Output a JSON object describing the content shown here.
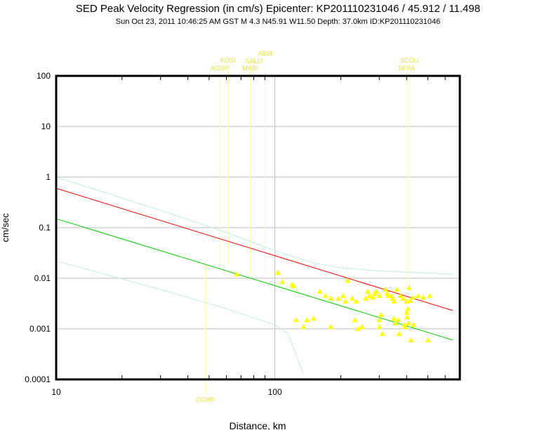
{
  "header": {
    "title": "SED Peak Velocity Regression (in cm/s) Epicenter: KP201110231046 / 45.912 / 11.498",
    "subtitle": "Sun Oct 23, 2011 10:46:25 AM GST   M 4.3   N45.91 W11.50   Depth: 37.0km   ID:KP201110231046"
  },
  "chart_data": {
    "type": "scatter",
    "title": "SED Peak Velocity Regression (in cm/s) Epicenter: KP201110231046 / 45.912 / 11.498",
    "subtitle": "Sun Oct 23, 2011 10:46:25 AM GST   M 4.3   N45.91 W11.50   Depth: 37.0km   ID:KP201110231046",
    "xlabel": "Distance, km",
    "ylabel": "cm/sec",
    "x_scale": "log",
    "y_scale": "log",
    "xlim": [
      10,
      700
    ],
    "ylim": [
      0.0001,
      100
    ],
    "x_ticks": [
      {
        "value": 10,
        "label": "10"
      },
      {
        "value": 100,
        "label": "100"
      }
    ],
    "y_ticks": [
      {
        "value": 100,
        "label": "100"
      },
      {
        "value": 10,
        "label": "10"
      },
      {
        "value": 1,
        "label": "1"
      },
      {
        "value": 0.1,
        "label": "0.1"
      },
      {
        "value": 0.01,
        "label": "0.01"
      },
      {
        "value": 0.001,
        "label": "0.001"
      },
      {
        "value": 0.0001,
        "label": "0.0001"
      }
    ],
    "grid": true,
    "colors": {
      "points": "#ffff00",
      "median_regression": "#ff0000",
      "lower_regression": "#00cc00",
      "bounds": "#bfeedd",
      "station_lines": "#ffff99",
      "station_labels": "#e6e63a",
      "grid": "#bbbbbb"
    },
    "regression_lines": [
      {
        "id": "median",
        "color": "#ff0000",
        "x": [
          10,
          650
        ],
        "y": [
          0.6,
          0.0023
        ]
      },
      {
        "id": "lower",
        "color": "#00cc00",
        "x": [
          10,
          650
        ],
        "y": [
          0.15,
          0.0006
        ]
      },
      {
        "id": "upper-bound",
        "color": "#bfeedd",
        "x": [
          10,
          30,
          60,
          100,
          150,
          200,
          300,
          650
        ],
        "y": [
          1.0,
          0.22,
          0.08,
          0.035,
          0.02,
          0.016,
          0.014,
          0.012
        ]
      },
      {
        "id": "lower-bound",
        "color": "#bfeedd",
        "x": [
          10,
          30,
          60,
          100,
          115,
          125,
          135
        ],
        "y": [
          0.022,
          0.006,
          0.0025,
          0.0012,
          0.0008,
          0.0003,
          0.00013
        ]
      }
    ],
    "station_markers": [
      {
        "name": "AGOR",
        "x": 56,
        "y": 0.018
      },
      {
        "name": "KOSI",
        "x": 61,
        "y": 0.018
      },
      {
        "name": "MABI",
        "x": 77,
        "y": 0.012
      },
      {
        "name": "SALO",
        "x": 80,
        "y": 0.012
      },
      {
        "name": "ABSI",
        "x": 90,
        "y": 0.012
      },
      {
        "name": "OGRP",
        "x": 48,
        "y": 0.018
      },
      {
        "name": "SFRA",
        "x": 400,
        "y": 0.007
      },
      {
        "name": "SCOU",
        "x": 412,
        "y": 0.007
      }
    ],
    "points": [
      {
        "x": 67,
        "y": 0.012
      },
      {
        "x": 103,
        "y": 0.013
      },
      {
        "x": 108,
        "y": 0.0085
      },
      {
        "x": 120,
        "y": 0.0075
      },
      {
        "x": 122,
        "y": 0.007
      },
      {
        "x": 125,
        "y": 0.0015
      },
      {
        "x": 135,
        "y": 0.0011
      },
      {
        "x": 140,
        "y": 0.0015
      },
      {
        "x": 150,
        "y": 0.0016
      },
      {
        "x": 160,
        "y": 0.0055
      },
      {
        "x": 170,
        "y": 0.0045
      },
      {
        "x": 180,
        "y": 0.004
      },
      {
        "x": 180,
        "y": 0.0011
      },
      {
        "x": 195,
        "y": 0.004
      },
      {
        "x": 205,
        "y": 0.0045
      },
      {
        "x": 210,
        "y": 0.0035
      },
      {
        "x": 215,
        "y": 0.009
      },
      {
        "x": 225,
        "y": 0.004
      },
      {
        "x": 232,
        "y": 0.0015
      },
      {
        "x": 235,
        "y": 0.0035
      },
      {
        "x": 240,
        "y": 0.001
      },
      {
        "x": 250,
        "y": 0.0011
      },
      {
        "x": 260,
        "y": 0.004
      },
      {
        "x": 265,
        "y": 0.0055
      },
      {
        "x": 270,
        "y": 0.0045
      },
      {
        "x": 280,
        "y": 0.0042
      },
      {
        "x": 285,
        "y": 0.005
      },
      {
        "x": 290,
        "y": 0.0055
      },
      {
        "x": 300,
        "y": 0.0045
      },
      {
        "x": 300,
        "y": 0.0015
      },
      {
        "x": 300,
        "y": 0.0011
      },
      {
        "x": 305,
        "y": 0.0019
      },
      {
        "x": 310,
        "y": 0.0008
      },
      {
        "x": 320,
        "y": 0.006
      },
      {
        "x": 325,
        "y": 0.005
      },
      {
        "x": 330,
        "y": 0.0045
      },
      {
        "x": 340,
        "y": 0.0045
      },
      {
        "x": 345,
        "y": 0.004
      },
      {
        "x": 350,
        "y": 0.0035
      },
      {
        "x": 350,
        "y": 0.0016
      },
      {
        "x": 355,
        "y": 0.0013
      },
      {
        "x": 360,
        "y": 0.006
      },
      {
        "x": 365,
        "y": 0.0015
      },
      {
        "x": 370,
        "y": 0.0008
      },
      {
        "x": 375,
        "y": 0.0045
      },
      {
        "x": 385,
        "y": 0.004
      },
      {
        "x": 390,
        "y": 0.0012
      },
      {
        "x": 395,
        "y": 0.0011
      },
      {
        "x": 400,
        "y": 0.0035
      },
      {
        "x": 400,
        "y": 0.0021
      },
      {
        "x": 402,
        "y": 0.0017
      },
      {
        "x": 405,
        "y": 0.0025
      },
      {
        "x": 408,
        "y": 0.0013
      },
      {
        "x": 410,
        "y": 0.0065
      },
      {
        "x": 415,
        "y": 0.0036
      },
      {
        "x": 418,
        "y": 0.0006
      },
      {
        "x": 425,
        "y": 0.0042
      },
      {
        "x": 430,
        "y": 0.0012
      },
      {
        "x": 450,
        "y": 0.0045
      },
      {
        "x": 475,
        "y": 0.0042
      },
      {
        "x": 500,
        "y": 0.0006
      },
      {
        "x": 510,
        "y": 0.0045
      }
    ]
  }
}
